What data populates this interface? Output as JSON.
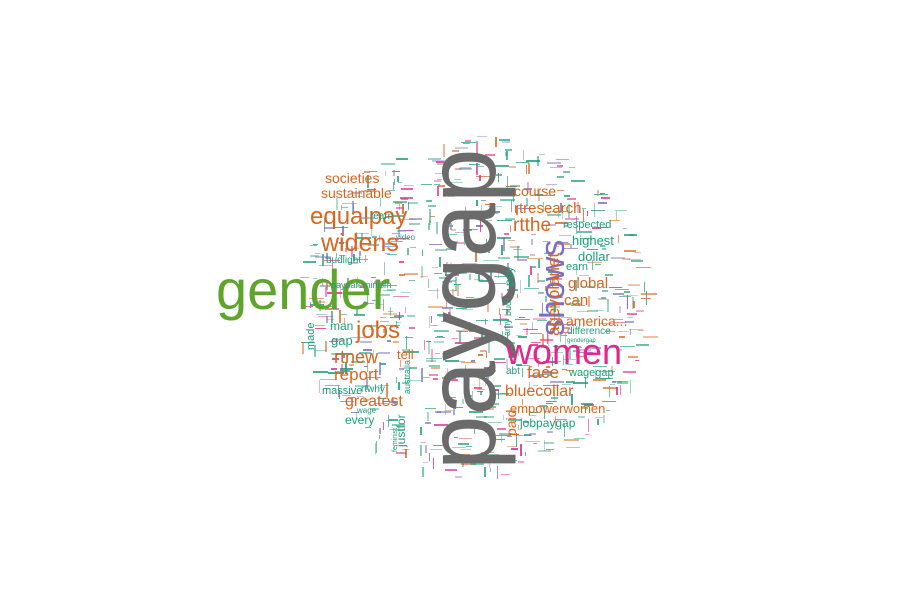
{
  "colors": {
    "gray": "#6b6b6b",
    "green": "#5fa52b",
    "magenta": "#e0288e",
    "purple": "#7b6fc4",
    "orange": "#d9651e",
    "teal": "#1f9e79"
  },
  "words": [
    {
      "text": "paygap",
      "color": "gray"
    },
    {
      "text": "gender",
      "color": "green"
    },
    {
      "text": "women",
      "color": "magenta"
    },
    {
      "text": "shows",
      "color": "purple"
    },
    {
      "text": "equalpay",
      "color": "orange"
    },
    {
      "text": "widens",
      "color": "orange"
    },
    {
      "text": "jobs",
      "color": "orange"
    },
    {
      "text": "rtnew",
      "color": "orange"
    },
    {
      "text": "report",
      "color": "orange"
    },
    {
      "text": "greatest",
      "color": "orange"
    },
    {
      "text": "societies",
      "color": "orange"
    },
    {
      "text": "sustainable",
      "color": "orange"
    },
    {
      "text": "rtresearch",
      "color": "orange"
    },
    {
      "text": "rtthe",
      "color": "orange"
    },
    {
      "text": "course",
      "color": "orange"
    },
    {
      "text": "agevplanet",
      "color": "orange"
    },
    {
      "text": "global",
      "color": "orange"
    },
    {
      "text": "america...",
      "color": "orange"
    },
    {
      "text": "face",
      "color": "orange"
    },
    {
      "text": "bluecollar",
      "color": "orange"
    },
    {
      "text": "empowerwomen",
      "color": "orange"
    },
    {
      "text": "jobpaygap",
      "color": "teal"
    },
    {
      "text": "wagegap",
      "color": "teal"
    },
    {
      "text": "dollar",
      "color": "teal"
    },
    {
      "text": "highest",
      "color": "teal"
    },
    {
      "text": "respected",
      "color": "teal"
    },
    {
      "text": "earn",
      "color": "teal"
    },
    {
      "text": "can",
      "color": "orange"
    },
    {
      "text": "difference",
      "color": "teal"
    },
    {
      "text": "abt",
      "color": "teal"
    },
    {
      "text": "paid",
      "color": "orange"
    },
    {
      "text": "man",
      "color": "teal"
    },
    {
      "text": "gap",
      "color": "teal"
    },
    {
      "text": "made",
      "color": "teal"
    },
    {
      "text": "tell",
      "color": "orange"
    },
    {
      "text": "massive",
      "color": "teal"
    },
    {
      "text": "every",
      "color": "teal"
    },
    {
      "text": "justfor",
      "color": "teal"
    },
    {
      "text": "rtwhy",
      "color": "teal"
    },
    {
      "text": "wage",
      "color": "teal"
    },
    {
      "text": "budlight",
      "color": "teal"
    },
    {
      "text": "learn",
      "color": "teal"
    },
    {
      "text": "paypafeminism",
      "color": "teal"
    },
    {
      "text": "australia",
      "color": "teal"
    },
    {
      "text": "video",
      "color": "teal"
    },
    {
      "text": "pay",
      "color": "teal"
    },
    {
      "text": "gendergap",
      "color": "teal"
    },
    {
      "text": "feminist",
      "color": "teal"
    },
    {
      "text": "amy",
      "color": "teal"
    },
    {
      "text": "bud",
      "color": "teal"
    }
  ]
}
